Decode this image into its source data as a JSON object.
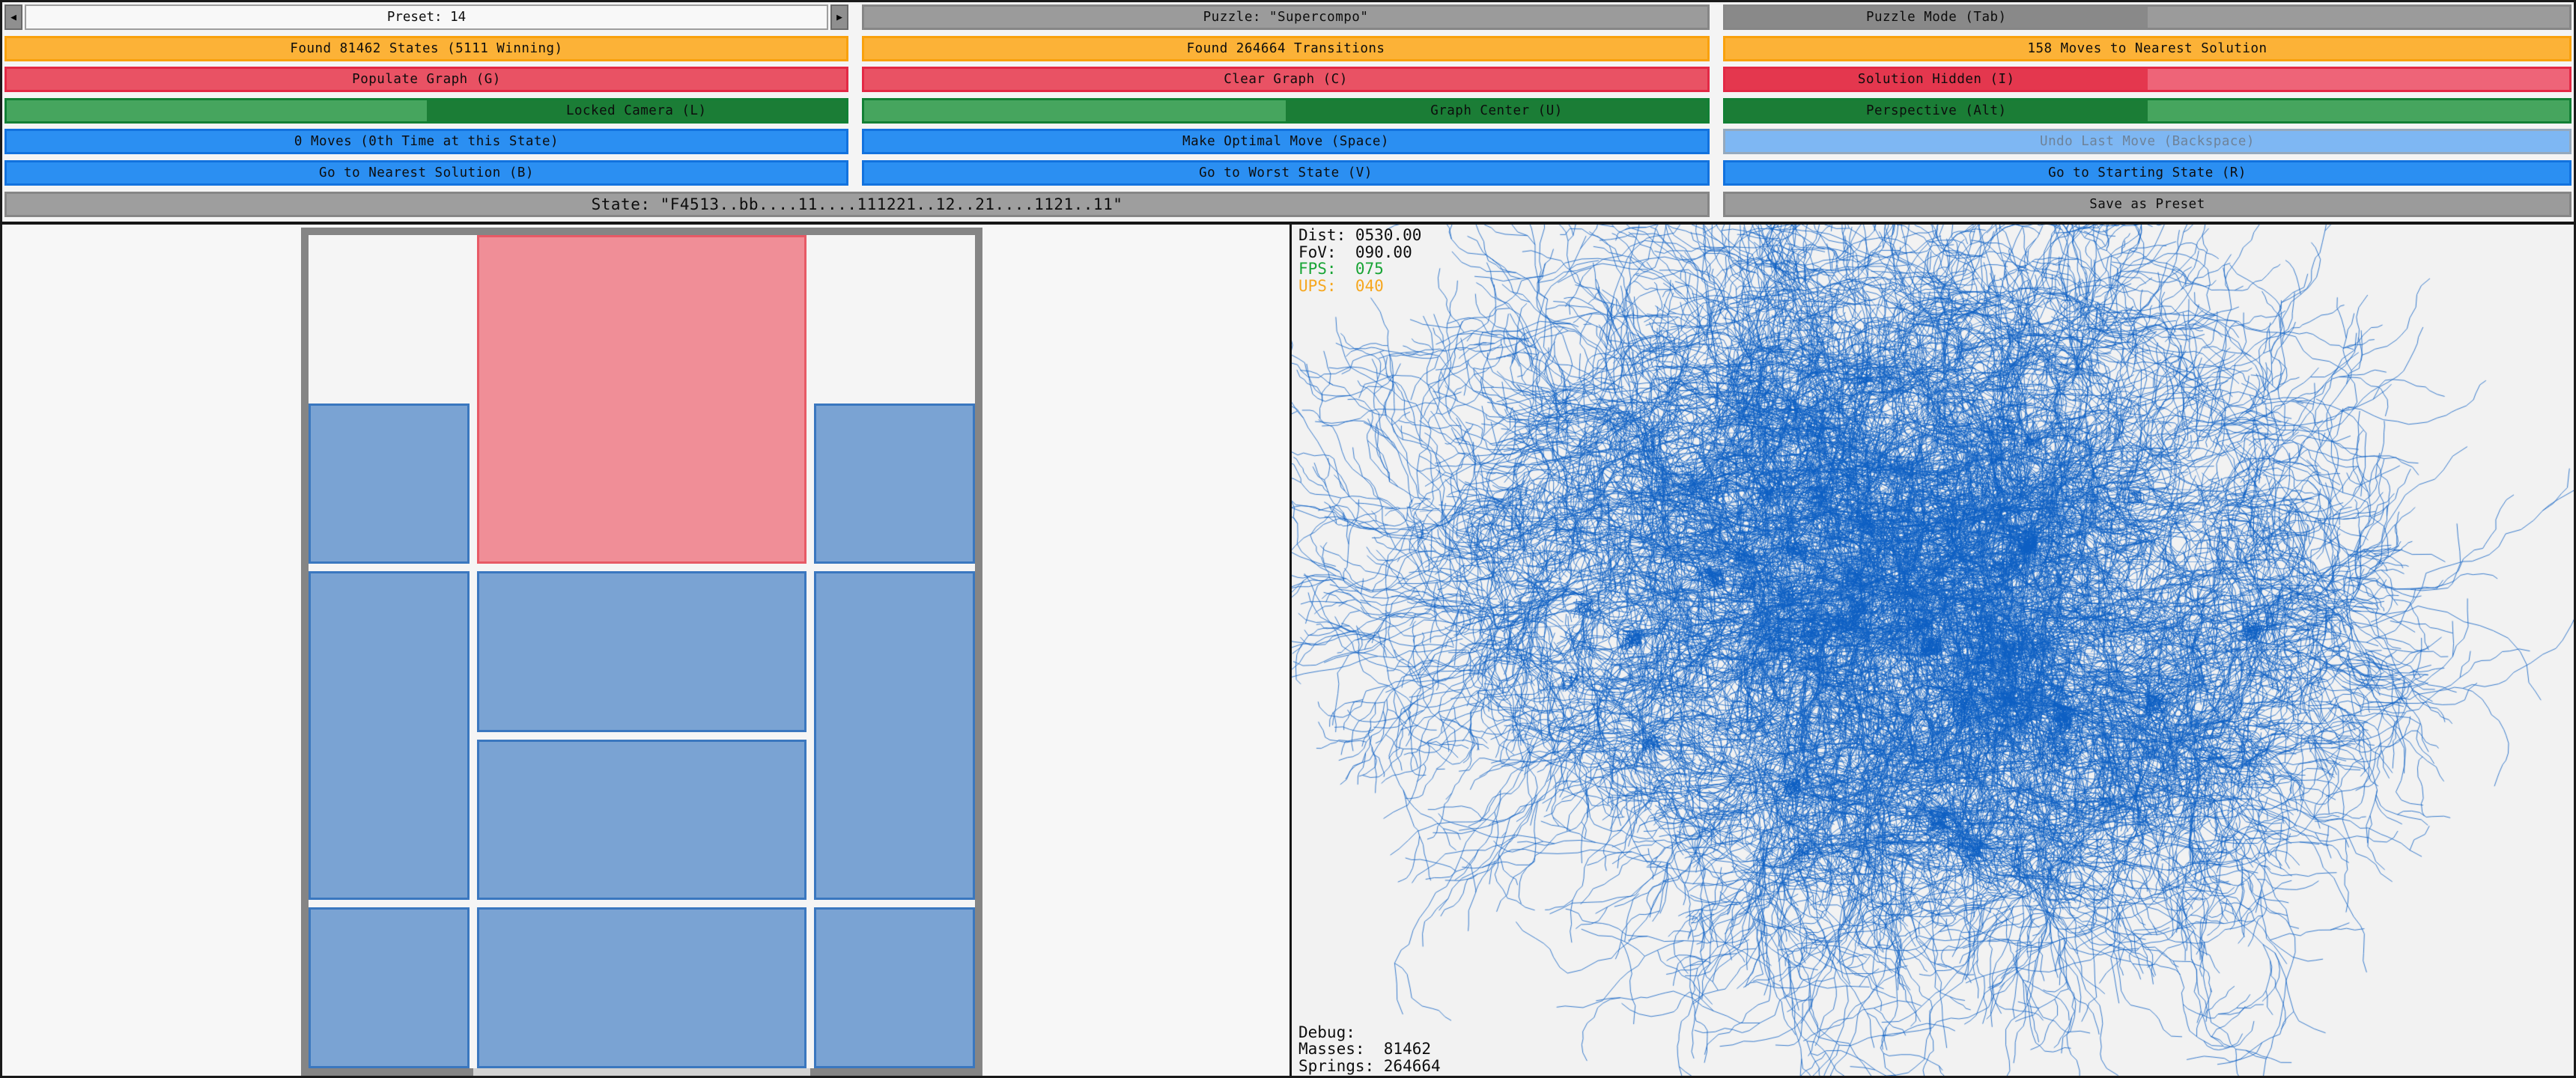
{
  "toolbar": {
    "preset": {
      "value": "Preset: 14",
      "prev_icon": "◀",
      "next_icon": "▶"
    },
    "puzzle_label": "Puzzle: \"Supercompo\"",
    "mode_label": "Puzzle Mode (Tab)",
    "found_states": "Found 81462 States (5111 Winning)",
    "found_transitions": "Found 264664 Transitions",
    "moves_to_solution": "158 Moves to Nearest Solution",
    "populate_graph": "Populate Graph (G)",
    "clear_graph": "Clear Graph (C)",
    "solution_hidden": "Solution Hidden (I)",
    "locked_camera": "Locked Camera (L)",
    "graph_center": "Graph Center (U)",
    "perspective": "Perspective (Alt)",
    "moves_count": "0 Moves (0th Time at this State)",
    "make_optimal": "Make Optimal Move (Space)",
    "undo": "Undo Last Move (Backspace)",
    "go_nearest": "Go to Nearest Solution (B)",
    "go_worst": "Go to Worst State (V)",
    "go_start": "Go to Starting State (R)",
    "state": "State: \"F4513..bb....11....111221..12..21....1121..11\"",
    "save_preset": "Save as Preset"
  },
  "hud": {
    "dist": "Dist: 0530.00",
    "fov": "FoV:  090.00",
    "fps": "FPS:  075",
    "ups": "UPS:  040"
  },
  "debug": {
    "title": "Debug:",
    "masses": "Masses:  81462",
    "springs": "Springs: 264664"
  },
  "puzzle_board": {
    "cols": 4,
    "rows": 5,
    "exit": {
      "side": "bottom",
      "from_col": 2,
      "span_cols": 2
    },
    "pieces": [
      {
        "id": "target",
        "type": "target",
        "col": 2,
        "row": 1,
        "w": 2,
        "h": 2
      },
      {
        "id": "b1",
        "type": "block",
        "col": 1,
        "row": 2,
        "w": 1,
        "h": 1
      },
      {
        "id": "b2",
        "type": "block",
        "col": 4,
        "row": 2,
        "w": 1,
        "h": 1
      },
      {
        "id": "b3",
        "type": "block",
        "col": 1,
        "row": 3,
        "w": 1,
        "h": 2
      },
      {
        "id": "b4",
        "type": "block",
        "col": 2,
        "row": 3,
        "w": 2,
        "h": 1
      },
      {
        "id": "b5",
        "type": "block",
        "col": 4,
        "row": 3,
        "w": 1,
        "h": 2
      },
      {
        "id": "b6",
        "type": "block",
        "col": 2,
        "row": 4,
        "w": 2,
        "h": 1
      },
      {
        "id": "b7",
        "type": "block",
        "col": 1,
        "row": 5,
        "w": 1,
        "h": 1
      },
      {
        "id": "b8",
        "type": "block",
        "col": 2,
        "row": 5,
        "w": 2,
        "h": 1
      },
      {
        "id": "b9",
        "type": "block",
        "col": 4,
        "row": 5,
        "w": 1,
        "h": 1
      }
    ]
  },
  "colors": {
    "orange_fill": "#FCB237",
    "orange_border": "#F9A10C",
    "red_fill": "#E95264",
    "red_border": "#E32945",
    "red_light": "#EE6478",
    "red_dark": "#E4374E",
    "green_light": "#46A55E",
    "green_dark": "#1B7D36",
    "green_border": "#128035",
    "blue_fill": "#2B8FF2",
    "blue_border": "#1272DE",
    "blue_disabled_fill": "#7EB7F3",
    "blue_disabled_border": "#94A9BD",
    "blue_disabled_text": "#6E8298",
    "gray_fill": "#9B9B9B",
    "gray_dark": "#898989",
    "gray_border": "#868686",
    "state_fill": "#9E9E9E",
    "hud_fps": "#18A435",
    "hud_ups": "#F6A71F",
    "graph_edge": "#0D5FC3",
    "piece_blue_fill": "#7AA3D3",
    "piece_blue_border": "#3A77BF",
    "piece_target_fill": "#F08E97",
    "piece_target_border": "#E75A66",
    "board_frame": "#858585",
    "board_interior": "#F5F5F5",
    "board_exit": "#D2D2D2"
  }
}
